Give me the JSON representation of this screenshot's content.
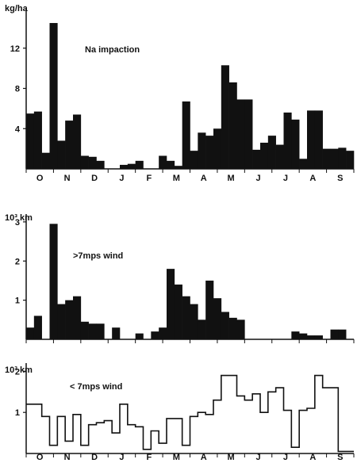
{
  "chart_data": [
    {
      "type": "bar",
      "ylabel": "kg/ha",
      "annotation": "Na impaction",
      "ylim": [
        0,
        16
      ],
      "yticks": [
        "4",
        "8",
        "12"
      ],
      "ytick_values": [
        4,
        8,
        12
      ],
      "month_labels": [
        "O",
        "N",
        "D",
        "J",
        "F",
        "M",
        "A",
        "M",
        "J",
        "J",
        "A",
        "S"
      ],
      "bar_color": "#111111",
      "values": [
        5.5,
        5.7,
        1.6,
        14.5,
        2.8,
        4.8,
        5.4,
        1.3,
        1.2,
        0.8,
        0,
        0,
        0.4,
        0.5,
        0.8,
        0,
        0,
        1.3,
        0.8,
        0.3,
        6.7,
        1.8,
        3.6,
        3.3,
        4.0,
        10.3,
        8.6,
        6.9,
        6.9,
        1.9,
        2.6,
        3.3,
        2.4,
        5.6,
        4.9,
        1.0,
        5.8,
        5.8,
        2.0,
        2.0,
        2.1,
        1.8
      ]
    },
    {
      "type": "bar",
      "ylabel": "10³ km",
      "annotation": ">7mps wind",
      "ylim": [
        0,
        3.2
      ],
      "yticks": [
        "1",
        "2",
        "3"
      ],
      "ytick_values": [
        1,
        2,
        3
      ],
      "month_labels": [
        "O",
        "N",
        "D",
        "J",
        "F",
        "M",
        "A",
        "M",
        "J",
        "J",
        "A",
        "S"
      ],
      "bar_color": "#111111",
      "values": [
        0.3,
        0.6,
        0,
        2.95,
        0.9,
        1.0,
        1.1,
        0.45,
        0.4,
        0.4,
        0,
        0.3,
        0,
        0,
        0.15,
        0,
        0.2,
        0.3,
        1.8,
        1.4,
        1.1,
        0.9,
        0.5,
        1.5,
        1.05,
        0.7,
        0.55,
        0.5,
        0,
        0,
        0,
        0,
        0,
        0,
        0.2,
        0.15,
        0.1,
        0.1,
        0,
        0.25,
        0.25,
        0
      ]
    },
    {
      "type": "line",
      "style": "step",
      "ylabel": "10³ km",
      "annotation": "< 7mps wind",
      "ylim": [
        0,
        2.2
      ],
      "yticks": [
        "1",
        "2"
      ],
      "ytick_values": [
        1,
        2
      ],
      "month_labels": [
        "O",
        "N",
        "D",
        "J",
        "F",
        "M",
        "A",
        "M",
        "J",
        "J",
        "A",
        "S"
      ],
      "line_color": "#111111",
      "values": [
        1.2,
        1.2,
        0.9,
        0.2,
        0.9,
        0.3,
        0.95,
        0.2,
        0.7,
        0.75,
        0.8,
        0.5,
        1.2,
        0.7,
        0.65,
        0.1,
        0.55,
        0.25,
        0.85,
        0.85,
        0.2,
        0.9,
        1.0,
        0.95,
        1.3,
        1.9,
        1.9,
        1.4,
        1.3,
        1.45,
        1.0,
        1.5,
        1.6,
        1.05,
        0.15,
        1.05,
        1.1,
        1.9,
        1.6,
        1.6,
        0.05,
        0.05
      ]
    }
  ]
}
